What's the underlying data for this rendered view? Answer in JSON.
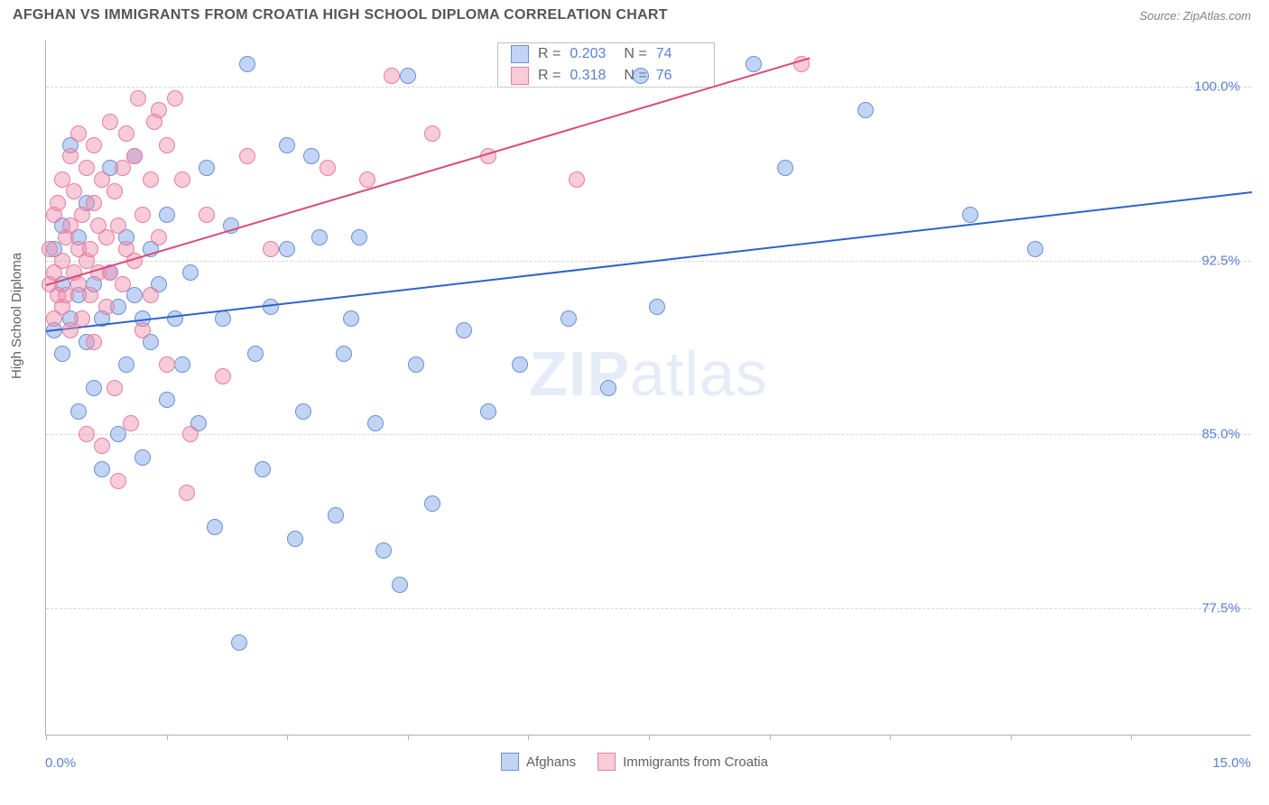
{
  "header": {
    "title": "AFGHAN VS IMMIGRANTS FROM CROATIA HIGH SCHOOL DIPLOMA CORRELATION CHART",
    "source": "Source: ZipAtlas.com"
  },
  "chart": {
    "type": "scatter",
    "y_label": "High School Diploma",
    "x_min": 0.0,
    "x_max": 15.0,
    "y_min": 72.0,
    "y_max": 102.0,
    "x_tick_labels": {
      "left": "0.0%",
      "right": "15.0%"
    },
    "x_tick_positions": [
      0.0,
      1.5,
      3.0,
      4.5,
      6.0,
      7.5,
      9.0,
      10.5,
      12.0,
      13.5
    ],
    "y_ticks": [
      {
        "v": 77.5,
        "label": "77.5%"
      },
      {
        "v": 85.0,
        "label": "85.0%"
      },
      {
        "v": 92.5,
        "label": "92.5%"
      },
      {
        "v": 100.0,
        "label": "100.0%"
      }
    ],
    "grid_color": "#d5d5d5",
    "background_color": "#ffffff",
    "axis_color": "#b0b0b0",
    "tick_label_color": "#5b7fd4",
    "watermark": {
      "bold": "ZIP",
      "rest": "atlas"
    },
    "series": [
      {
        "name": "Afghans",
        "color_fill": "rgba(120,160,230,0.45)",
        "color_stroke": "#6a90d8",
        "trend_color": "#2e63c9",
        "R": "0.203",
        "N": "74",
        "trend": {
          "x1": 0.0,
          "y1": 89.5,
          "x2": 15.0,
          "y2": 95.5
        },
        "marker_radius": 9,
        "points": [
          [
            0.1,
            89.5
          ],
          [
            0.1,
            93.0
          ],
          [
            0.2,
            91.5
          ],
          [
            0.2,
            88.5
          ],
          [
            0.2,
            94.0
          ],
          [
            0.3,
            90.0
          ],
          [
            0.3,
            97.5
          ],
          [
            0.4,
            91
          ],
          [
            0.4,
            86
          ],
          [
            0.4,
            93.5
          ],
          [
            0.5,
            89
          ],
          [
            0.5,
            95
          ],
          [
            0.6,
            91.5
          ],
          [
            0.6,
            87
          ],
          [
            0.7,
            90
          ],
          [
            0.7,
            83.5
          ],
          [
            0.8,
            92
          ],
          [
            0.8,
            96.5
          ],
          [
            0.9,
            85
          ],
          [
            0.9,
            90.5
          ],
          [
            1.0,
            93.5
          ],
          [
            1.0,
            88
          ],
          [
            1.1,
            91
          ],
          [
            1.1,
            97
          ],
          [
            1.2,
            84
          ],
          [
            1.2,
            90
          ],
          [
            1.3,
            93
          ],
          [
            1.3,
            89
          ],
          [
            1.4,
            91.5
          ],
          [
            1.5,
            86.5
          ],
          [
            1.5,
            94.5
          ],
          [
            1.6,
            90
          ],
          [
            1.7,
            88
          ],
          [
            1.8,
            92
          ],
          [
            1.9,
            85.5
          ],
          [
            2.0,
            96.5
          ],
          [
            2.1,
            81
          ],
          [
            2.2,
            90
          ],
          [
            2.3,
            94
          ],
          [
            2.4,
            76
          ],
          [
            2.5,
            101
          ],
          [
            2.6,
            88.5
          ],
          [
            2.7,
            83.5
          ],
          [
            2.8,
            90.5
          ],
          [
            3.0,
            97.5
          ],
          [
            3.0,
            93.0
          ],
          [
            3.1,
            80.5
          ],
          [
            3.2,
            86
          ],
          [
            3.3,
            97
          ],
          [
            3.4,
            93.5
          ],
          [
            3.6,
            81.5
          ],
          [
            3.7,
            88.5
          ],
          [
            3.8,
            90
          ],
          [
            3.9,
            93.5
          ],
          [
            4.1,
            85.5
          ],
          [
            4.2,
            80
          ],
          [
            4.4,
            78.5
          ],
          [
            4.5,
            100.5
          ],
          [
            4.6,
            88
          ],
          [
            4.8,
            82
          ],
          [
            5.2,
            89.5
          ],
          [
            5.5,
            86
          ],
          [
            5.9,
            88
          ],
          [
            6.5,
            90
          ],
          [
            7.0,
            87
          ],
          [
            7.4,
            100.5
          ],
          [
            7.6,
            90.5
          ],
          [
            8.8,
            101
          ],
          [
            9.2,
            96.5
          ],
          [
            10.2,
            99
          ],
          [
            11.5,
            94.5
          ],
          [
            12.3,
            93
          ]
        ]
      },
      {
        "name": "Immigrants from Croatia",
        "color_fill": "rgba(240,140,170,0.45)",
        "color_stroke": "#e87da0",
        "trend_color": "#d94b7a",
        "R": "0.318",
        "N": "76",
        "trend": {
          "x1": 0.0,
          "y1": 91.5,
          "x2": 9.5,
          "y2": 101.3
        },
        "marker_radius": 9,
        "points": [
          [
            0.05,
            91.5
          ],
          [
            0.05,
            93
          ],
          [
            0.1,
            92
          ],
          [
            0.1,
            94.5
          ],
          [
            0.1,
            90
          ],
          [
            0.15,
            91
          ],
          [
            0.15,
            95
          ],
          [
            0.2,
            92.5
          ],
          [
            0.2,
            90.5
          ],
          [
            0.2,
            96
          ],
          [
            0.25,
            93.5
          ],
          [
            0.25,
            91
          ],
          [
            0.3,
            94
          ],
          [
            0.3,
            89.5
          ],
          [
            0.3,
            97
          ],
          [
            0.35,
            92
          ],
          [
            0.35,
            95.5
          ],
          [
            0.4,
            91.5
          ],
          [
            0.4,
            93
          ],
          [
            0.4,
            98
          ],
          [
            0.45,
            90
          ],
          [
            0.45,
            94.5
          ],
          [
            0.5,
            92.5
          ],
          [
            0.5,
            96.5
          ],
          [
            0.5,
            85
          ],
          [
            0.55,
            93
          ],
          [
            0.55,
            91
          ],
          [
            0.6,
            95
          ],
          [
            0.6,
            89
          ],
          [
            0.6,
            97.5
          ],
          [
            0.65,
            92
          ],
          [
            0.65,
            94
          ],
          [
            0.7,
            84.5
          ],
          [
            0.7,
            96
          ],
          [
            0.75,
            93.5
          ],
          [
            0.75,
            90.5
          ],
          [
            0.8,
            98.5
          ],
          [
            0.8,
            92
          ],
          [
            0.85,
            95.5
          ],
          [
            0.85,
            87
          ],
          [
            0.9,
            94
          ],
          [
            0.9,
            83
          ],
          [
            0.95,
            96.5
          ],
          [
            0.95,
            91.5
          ],
          [
            1.0,
            98
          ],
          [
            1.0,
            93
          ],
          [
            1.05,
            85.5
          ],
          [
            1.1,
            97
          ],
          [
            1.1,
            92.5
          ],
          [
            1.15,
            99.5
          ],
          [
            1.2,
            94.5
          ],
          [
            1.2,
            89.5
          ],
          [
            1.3,
            96
          ],
          [
            1.3,
            91
          ],
          [
            1.35,
            98.5
          ],
          [
            1.4,
            99
          ],
          [
            1.4,
            93.5
          ],
          [
            1.5,
            88
          ],
          [
            1.5,
            97.5
          ],
          [
            1.6,
            99.5
          ],
          [
            1.7,
            96
          ],
          [
            1.75,
            82.5
          ],
          [
            1.8,
            85
          ],
          [
            2.0,
            94.5
          ],
          [
            2.2,
            87.5
          ],
          [
            2.5,
            97
          ],
          [
            2.8,
            93
          ],
          [
            3.5,
            96.5
          ],
          [
            4.0,
            96
          ],
          [
            4.3,
            100.5
          ],
          [
            4.8,
            98
          ],
          [
            5.5,
            97
          ],
          [
            6.6,
            96
          ],
          [
            9.4,
            101
          ]
        ]
      }
    ],
    "bottom_legend": [
      {
        "label": "Afghans",
        "fill": "rgba(120,160,230,0.45)",
        "stroke": "#6a90d8"
      },
      {
        "label": "Immigrants from Croatia",
        "fill": "rgba(240,140,170,0.45)",
        "stroke": "#e87da0"
      }
    ]
  }
}
